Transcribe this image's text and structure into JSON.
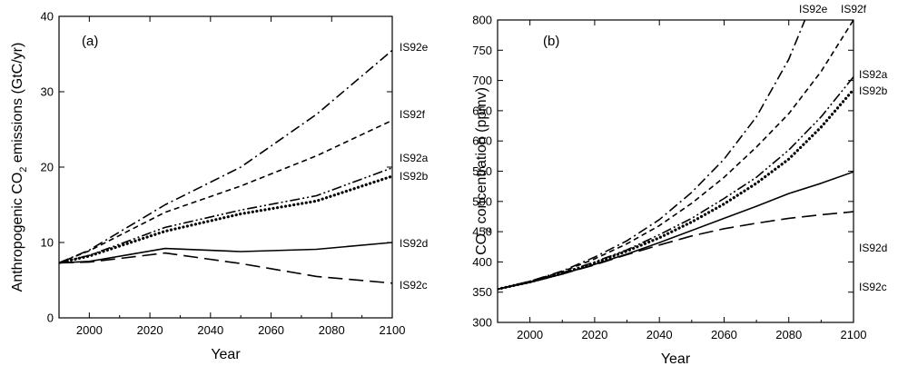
{
  "chart_data": [
    {
      "type": "line",
      "panel": "(a)",
      "title": "",
      "xlabel": "Year",
      "ylabel_parts": [
        "Anthropogenic CO",
        "2",
        " emissions (GtC/yr)"
      ],
      "xlim": [
        1990,
        2100
      ],
      "ylim": [
        0,
        40
      ],
      "xticks": [
        2000,
        2020,
        2040,
        2060,
        2080,
        2100
      ],
      "yticks": [
        0,
        10,
        20,
        30,
        40
      ],
      "grid": false,
      "series": [
        {
          "name": "IS92e",
          "style": "dashdot",
          "x": [
            1990,
            2000,
            2025,
            2050,
            2075,
            2100
          ],
          "y": [
            7.3,
            9.0,
            15.0,
            20.0,
            27.0,
            35.5
          ]
        },
        {
          "name": "IS92f",
          "style": "dashed",
          "x": [
            1990,
            2000,
            2025,
            2050,
            2075,
            2100
          ],
          "y": [
            7.3,
            8.9,
            14.0,
            17.5,
            21.5,
            26.2
          ]
        },
        {
          "name": "IS92a",
          "style": "dashdotdot",
          "x": [
            1990,
            2000,
            2025,
            2050,
            2075,
            2100
          ],
          "y": [
            7.3,
            8.3,
            12.0,
            14.3,
            16.2,
            19.9
          ]
        },
        {
          "name": "IS92b",
          "style": "dotted",
          "x": [
            1990,
            2000,
            2025,
            2050,
            2075,
            2100
          ],
          "y": [
            7.3,
            8.2,
            11.5,
            13.8,
            15.5,
            18.8
          ]
        },
        {
          "name": "IS92d",
          "style": "solid",
          "x": [
            1990,
            2000,
            2025,
            2050,
            2075,
            2100
          ],
          "y": [
            7.3,
            7.5,
            9.2,
            8.8,
            9.1,
            10.0
          ]
        },
        {
          "name": "IS92c",
          "style": "longdash",
          "x": [
            1990,
            2000,
            2025,
            2050,
            2075,
            2100
          ],
          "y": [
            7.3,
            7.4,
            8.6,
            7.2,
            5.5,
            4.6
          ]
        }
      ]
    },
    {
      "type": "line",
      "panel": "(b)",
      "title": "",
      "xlabel": "Year",
      "ylabel_parts": [
        "CO",
        "2",
        " concentration (ppmv)"
      ],
      "xlim": [
        1990,
        2100
      ],
      "ylim": [
        300,
        800
      ],
      "xticks": [
        2000,
        2020,
        2040,
        2060,
        2080,
        2100
      ],
      "yticks": [
        300,
        350,
        400,
        450,
        500,
        550,
        600,
        650,
        700,
        750,
        800
      ],
      "grid": false,
      "series": [
        {
          "name": "IS92e",
          "style": "dashdot",
          "x": [
            1990,
            2000,
            2010,
            2020,
            2030,
            2040,
            2050,
            2060,
            2070,
            2080,
            2085
          ],
          "y": [
            355,
            368,
            385,
            408,
            435,
            470,
            515,
            570,
            640,
            735,
            800
          ]
        },
        {
          "name": "IS92f",
          "style": "dashed",
          "x": [
            1990,
            2000,
            2010,
            2020,
            2030,
            2040,
            2050,
            2060,
            2070,
            2080,
            2090,
            2100
          ],
          "y": [
            355,
            368,
            384,
            405,
            430,
            460,
            497,
            540,
            590,
            645,
            715,
            800
          ]
        },
        {
          "name": "IS92a",
          "style": "dashdotdot",
          "x": [
            1990,
            2000,
            2010,
            2020,
            2030,
            2040,
            2050,
            2060,
            2070,
            2080,
            2090,
            2100
          ],
          "y": [
            355,
            367,
            382,
            400,
            420,
            445,
            472,
            505,
            540,
            585,
            640,
            706
          ]
        },
        {
          "name": "IS92b",
          "style": "dotted",
          "x": [
            1990,
            2000,
            2010,
            2020,
            2030,
            2040,
            2050,
            2060,
            2070,
            2080,
            2090,
            2100
          ],
          "y": [
            355,
            367,
            381,
            398,
            418,
            440,
            466,
            496,
            530,
            570,
            623,
            685
          ]
        },
        {
          "name": "IS92d",
          "style": "solid",
          "x": [
            1990,
            2000,
            2010,
            2020,
            2030,
            2040,
            2050,
            2060,
            2070,
            2080,
            2090,
            2100
          ],
          "y": [
            355,
            366,
            380,
            396,
            413,
            432,
            452,
            472,
            492,
            513,
            530,
            549
          ]
        },
        {
          "name": "IS92c",
          "style": "longdash",
          "x": [
            1990,
            2000,
            2010,
            2020,
            2030,
            2040,
            2050,
            2060,
            2070,
            2080,
            2090,
            2100
          ],
          "y": [
            355,
            366,
            380,
            395,
            412,
            428,
            443,
            455,
            464,
            472,
            478,
            483
          ]
        }
      ]
    }
  ]
}
